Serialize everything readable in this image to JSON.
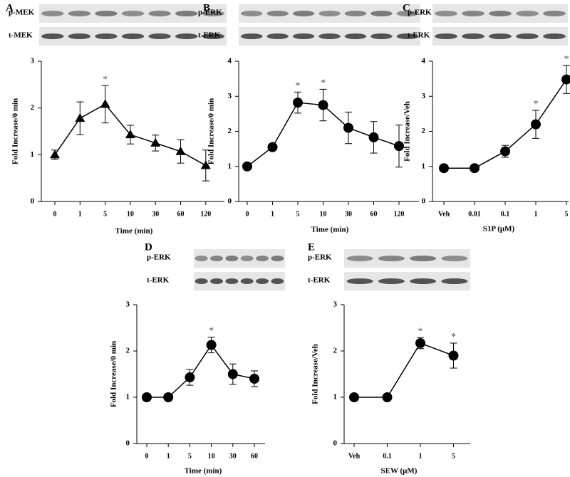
{
  "chart_data": [
    {
      "type": "line",
      "panel": "A",
      "blot_labels": [
        "p-MEK",
        "t-MEK"
      ],
      "categories": [
        "0",
        "1",
        "5",
        "10",
        "30",
        "60",
        "120"
      ],
      "values": [
        1.0,
        1.78,
        2.08,
        1.43,
        1.25,
        1.07,
        0.77
      ],
      "errors": [
        0.1,
        0.35,
        0.4,
        0.2,
        0.17,
        0.25,
        0.33
      ],
      "annotations": [
        null,
        null,
        "*",
        null,
        null,
        null,
        null
      ],
      "marker": "triangle",
      "color": "#000000",
      "x_label": "Time (min)",
      "y_label": "Fold Increase/0 min",
      "ylim": [
        0,
        3
      ],
      "yticks": [
        0,
        1,
        2,
        3
      ]
    },
    {
      "type": "line",
      "panel": "B",
      "blot_labels": [
        "p-ERK",
        "t-ERK"
      ],
      "categories": [
        "0",
        "1",
        "5",
        "10",
        "30",
        "60",
        "120"
      ],
      "values": [
        1.0,
        1.55,
        2.82,
        2.75,
        2.1,
        1.83,
        1.58
      ],
      "errors": [
        0.05,
        0.05,
        0.3,
        0.45,
        0.45,
        0.45,
        0.6
      ],
      "annotations": [
        null,
        null,
        "*",
        "*",
        null,
        null,
        null
      ],
      "marker": "circle",
      "color": "#000000",
      "x_label": "Time (min)",
      "y_label": "Fold Increase/0 min",
      "ylim": [
        0,
        4
      ],
      "yticks": [
        0,
        1,
        2,
        3,
        4
      ]
    },
    {
      "type": "line",
      "panel": "C",
      "blot_labels": [
        "p-ERK",
        "t-ERK"
      ],
      "categories": [
        "Veh",
        "0.01",
        "0.1",
        "1",
        "5"
      ],
      "values": [
        0.95,
        0.95,
        1.43,
        2.2,
        3.48
      ],
      "errors": [
        0.05,
        0.05,
        0.17,
        0.4,
        0.4
      ],
      "annotations": [
        null,
        null,
        null,
        "*",
        "*"
      ],
      "marker": "circle",
      "color": "#000000",
      "x_label": "S1P (μM)",
      "y_label": "Fold Increase/Veh",
      "ylim": [
        0,
        4
      ],
      "yticks": [
        0,
        1,
        2,
        3,
        4
      ]
    },
    {
      "type": "line",
      "panel": "D",
      "blot_labels": [
        "p-ERK",
        "t-ERK"
      ],
      "categories": [
        "0",
        "1",
        "5",
        "10",
        "30",
        "60"
      ],
      "values": [
        1.0,
        1.0,
        1.43,
        2.13,
        1.5,
        1.4
      ],
      "errors": [
        0.03,
        0.03,
        0.17,
        0.17,
        0.22,
        0.17
      ],
      "annotations": [
        null,
        null,
        null,
        "*",
        null,
        null
      ],
      "marker": "circle",
      "color": "#000000",
      "x_label": "Time (min)",
      "y_label": "Fold Increase/0 min",
      "ylim": [
        0,
        3
      ],
      "yticks": [
        0,
        1,
        2,
        3
      ]
    },
    {
      "type": "line",
      "panel": "E",
      "blot_labels": [
        "p-ERK",
        "t-ERK"
      ],
      "categories": [
        "Veh",
        "0.1",
        "1",
        "5"
      ],
      "values": [
        1.0,
        1.0,
        2.17,
        1.9
      ],
      "errors": [
        0.03,
        0.03,
        0.12,
        0.27
      ],
      "annotations": [
        null,
        null,
        "*",
        "*"
      ],
      "marker": "circle",
      "color": "#000000",
      "x_label": "SEW (μM)",
      "y_label": "Fold Increase/Veh",
      "ylim": [
        0,
        3
      ],
      "yticks": [
        0,
        1,
        2,
        3
      ]
    }
  ]
}
